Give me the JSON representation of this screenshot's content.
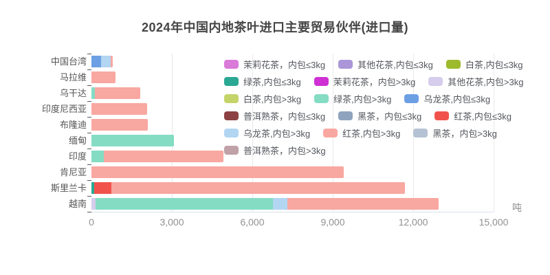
{
  "chart_data": {
    "type": "bar",
    "orientation": "horizontal",
    "stacked": true,
    "title": "2024年中国内地茶叶进口主要贸易伙伴(进口量)",
    "unit_label": "吨",
    "xlabel": "",
    "ylabel": "",
    "xlim": [
      0,
      15000
    ],
    "x_ticks": [
      0,
      3000,
      6000,
      9000,
      12000,
      15000
    ],
    "x_tick_labels": [
      "0",
      "3,000",
      "6,000",
      "9,000",
      "12,000",
      "15,000"
    ],
    "grid": true,
    "legend_position": "top-right-overlay",
    "legend_columns": 3,
    "categories": [
      "中国台湾",
      "马拉维",
      "乌干达",
      "印度尼西亚",
      "布隆迪",
      "缅甸",
      "印度",
      "肯尼亚",
      "斯里兰卡",
      "越南"
    ],
    "category_totals": [
      790,
      890,
      1810,
      2080,
      2100,
      3080,
      4920,
      9400,
      11690,
      12950
    ],
    "series": [
      {
        "name": "茉莉花茶，内包≤3kg",
        "color": "#da7ad9",
        "values": [
          0,
          0,
          0,
          0,
          0,
          0,
          0,
          0,
          0,
          0
        ]
      },
      {
        "name": "其他花茶,内包≤3kg",
        "color": "#aa96d8",
        "values": [
          0,
          0,
          0,
          0,
          0,
          0,
          0,
          0,
          0,
          0
        ]
      },
      {
        "name": "白茶,内包≤3kg",
        "color": "#9cba2c",
        "values": [
          0,
          0,
          0,
          0,
          0,
          0,
          0,
          0,
          0,
          0
        ]
      },
      {
        "name": "绿茶,内包≤3kg",
        "color": "#2aa893",
        "values": [
          0,
          0,
          0,
          0,
          0,
          0,
          0,
          0,
          100,
          0
        ]
      },
      {
        "name": "茉莉花茶，内包>3kg",
        "color": "#cf30d4",
        "values": [
          0,
          0,
          0,
          0,
          0,
          0,
          0,
          0,
          0,
          0
        ]
      },
      {
        "name": "其他花茶,内包>3kg",
        "color": "#d6ccec",
        "values": [
          0,
          0,
          0,
          0,
          0,
          0,
          0,
          0,
          0,
          150
        ]
      },
      {
        "name": "白茶,内包>3kg",
        "color": "#c5d469",
        "values": [
          0,
          0,
          0,
          0,
          0,
          0,
          0,
          0,
          0,
          0
        ]
      },
      {
        "name": "绿茶,内包>3kg",
        "color": "#84dcc3",
        "values": [
          0,
          0,
          130,
          0,
          0,
          3080,
          460,
          0,
          0,
          6610
        ]
      },
      {
        "name": "乌龙茶,内包≤3kg",
        "color": "#6d9fe4",
        "values": [
          350,
          0,
          0,
          0,
          0,
          0,
          0,
          0,
          0,
          0
        ]
      },
      {
        "name": "普洱熟茶，内包≤3kg",
        "color": "#8c4243",
        "values": [
          0,
          0,
          0,
          0,
          0,
          0,
          0,
          0,
          0,
          0
        ]
      },
      {
        "name": "黑茶，内包≤3kg",
        "color": "#8ea3bd",
        "values": [
          0,
          0,
          0,
          0,
          0,
          0,
          0,
          0,
          0,
          0
        ]
      },
      {
        "name": "红茶,内包≤3kg",
        "color": "#f1534c",
        "values": [
          0,
          0,
          0,
          0,
          0,
          0,
          0,
          0,
          640,
          0
        ]
      },
      {
        "name": "乌龙茶,内包>3kg",
        "color": "#b2d5f2",
        "values": [
          380,
          0,
          0,
          0,
          0,
          0,
          0,
          0,
          0,
          540
        ]
      },
      {
        "name": "红茶,内包>3kg",
        "color": "#f8a7a1",
        "values": [
          60,
          890,
          1680,
          2080,
          2100,
          0,
          4460,
          9400,
          10950,
          5650
        ]
      },
      {
        "name": "黑茶，内包>3kg",
        "color": "#b5c2d3",
        "values": [
          0,
          0,
          0,
          0,
          0,
          0,
          0,
          0,
          0,
          0
        ]
      },
      {
        "name": "普洱熟茶，内包>3kg",
        "color": "#c0a1a7",
        "values": [
          0,
          0,
          0,
          0,
          0,
          0,
          0,
          0,
          0,
          0
        ]
      }
    ]
  }
}
